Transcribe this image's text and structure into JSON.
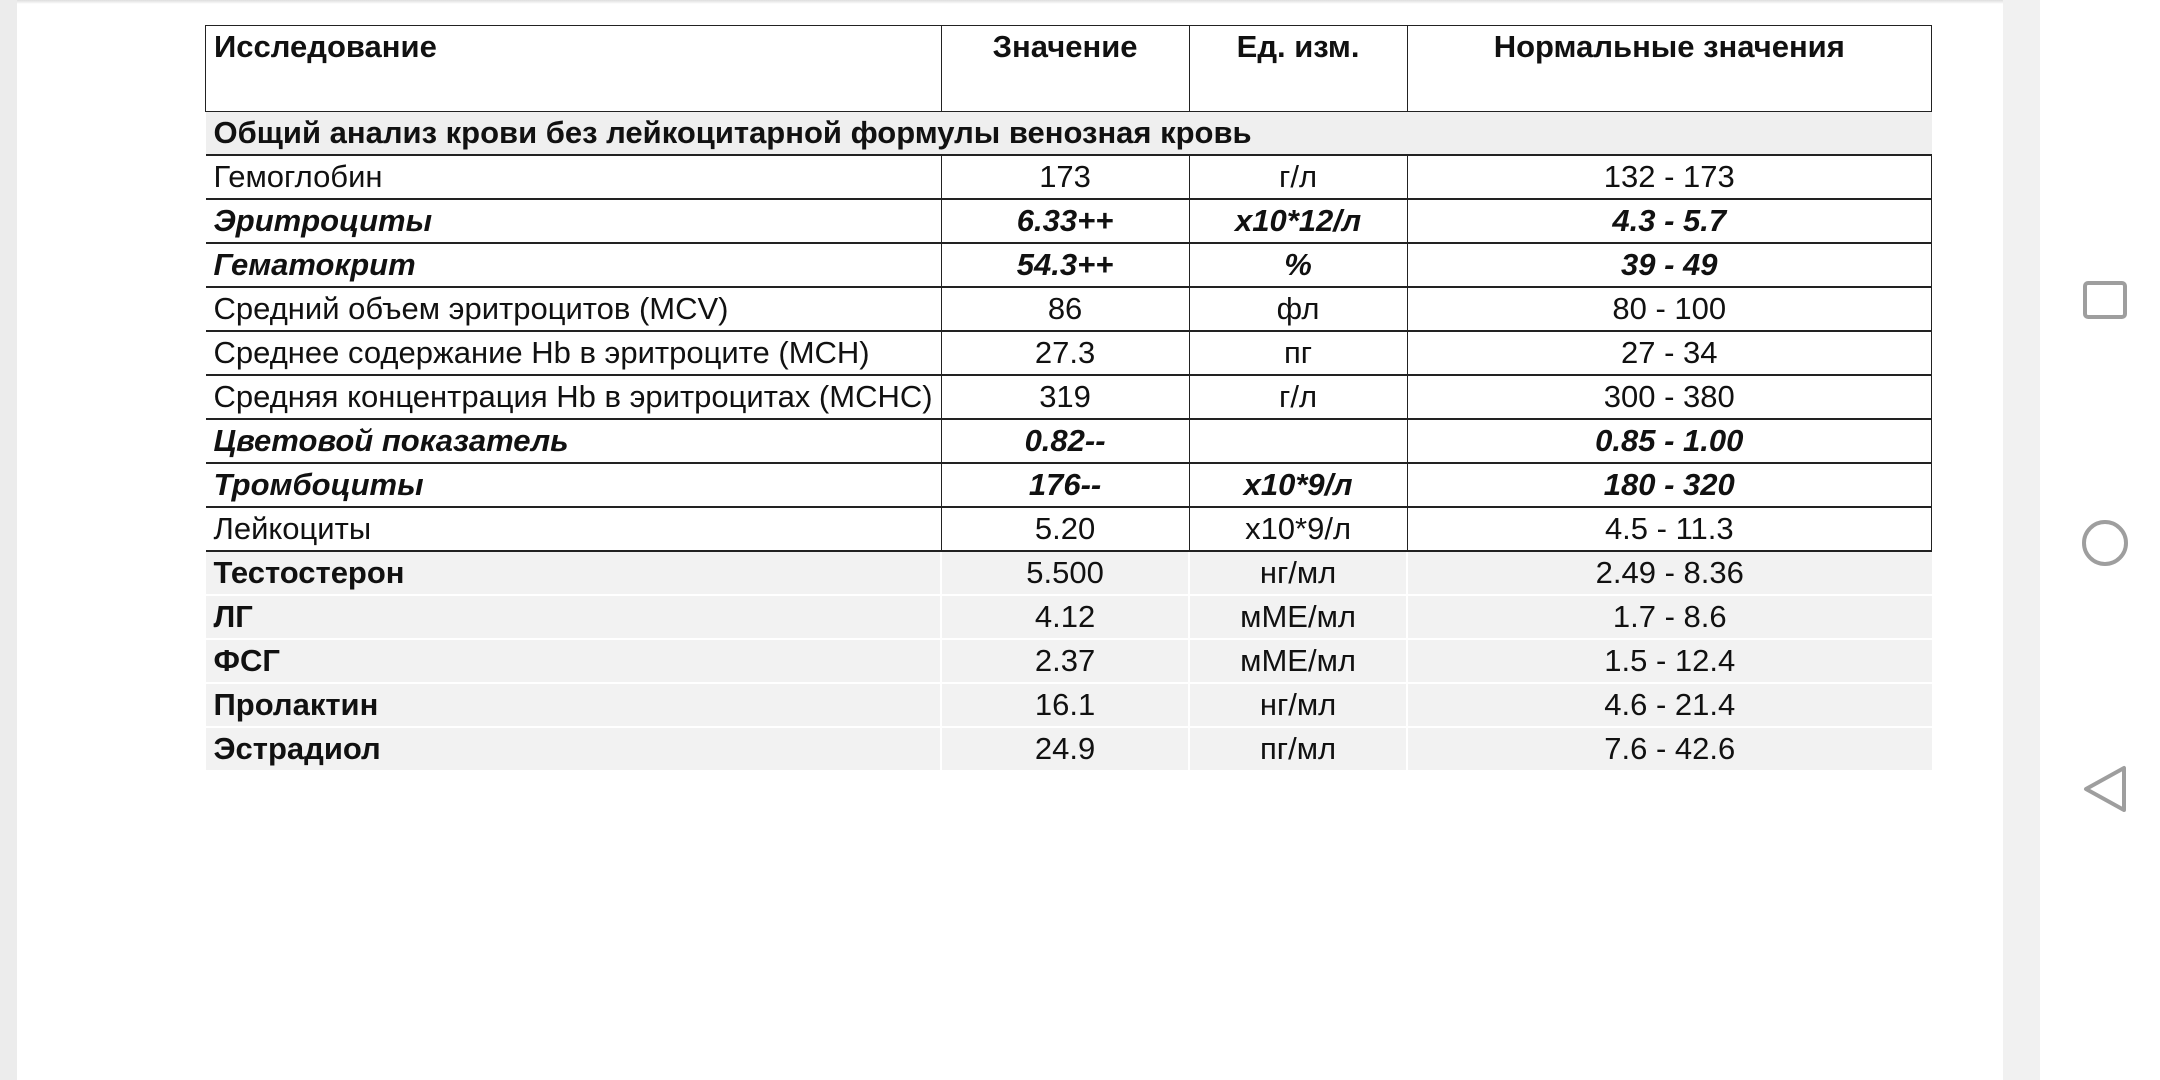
{
  "table": {
    "headers": [
      "Исследование",
      "Значение",
      "Ед. изм.",
      "Нормальные значения"
    ],
    "section_title": "Общий анализ крови без лейкоцитарной формулы венозная кровь",
    "cbc_rows": [
      {
        "name": "Гемоглобин",
        "value": "173",
        "unit": "г/л",
        "range": "132 - 173",
        "flagged": false
      },
      {
        "name": "Эритроциты",
        "value": "6.33++",
        "unit": "x10*12/л",
        "range": "4.3 - 5.7",
        "flagged": true
      },
      {
        "name": "Гематокрит",
        "value": "54.3++",
        "unit": "%",
        "range": "39 - 49",
        "flagged": true
      },
      {
        "name": "Средний объем эритроцитов (MCV)",
        "value": "86",
        "unit": "фл",
        "range": "80 - 100",
        "flagged": false
      },
      {
        "name": "Среднее содержание Hb в эритроците (MCH)",
        "value": "27.3",
        "unit": "пг",
        "range": "27 - 34",
        "flagged": false
      },
      {
        "name": "Средняя концентрация Hb в эритроцитах (MCHC)",
        "value": "319",
        "unit": "г/л",
        "range": "300 - 380",
        "flagged": false
      },
      {
        "name": "Цветовой показатель",
        "value": "0.82--",
        "unit": "",
        "range": "0.85 - 1.00",
        "flagged": true
      },
      {
        "name": "Тромбоциты",
        "value": "176--",
        "unit": "x10*9/л",
        "range": "180 - 320",
        "flagged": true
      },
      {
        "name": "Лейкоциты",
        "value": "5.20",
        "unit": "x10*9/л",
        "range": "4.5 - 11.3",
        "flagged": false
      }
    ],
    "hormone_rows": [
      {
        "name": "Тестостерон",
        "value": "5.500",
        "unit": "нг/мл",
        "range": "2.49 - 8.36"
      },
      {
        "name": "ЛГ",
        "value": "4.12",
        "unit": "мМЕ/мл",
        "range": "1.7 - 8.6"
      },
      {
        "name": "ФСГ",
        "value": "2.37",
        "unit": "мМЕ/мл",
        "range": "1.5 - 12.4"
      },
      {
        "name": "Пролактин",
        "value": "16.1",
        "unit": "нг/мл",
        "range": "4.6 - 21.4"
      },
      {
        "name": "Эстрадиол",
        "value": "24.9",
        "unit": "пг/мл",
        "range": "7.6 - 42.6"
      }
    ]
  },
  "navbar": {
    "icons": [
      "recents-square-icon",
      "home-circle-icon",
      "back-triangle-icon"
    ],
    "icon_color": "#9e9e9e"
  }
}
